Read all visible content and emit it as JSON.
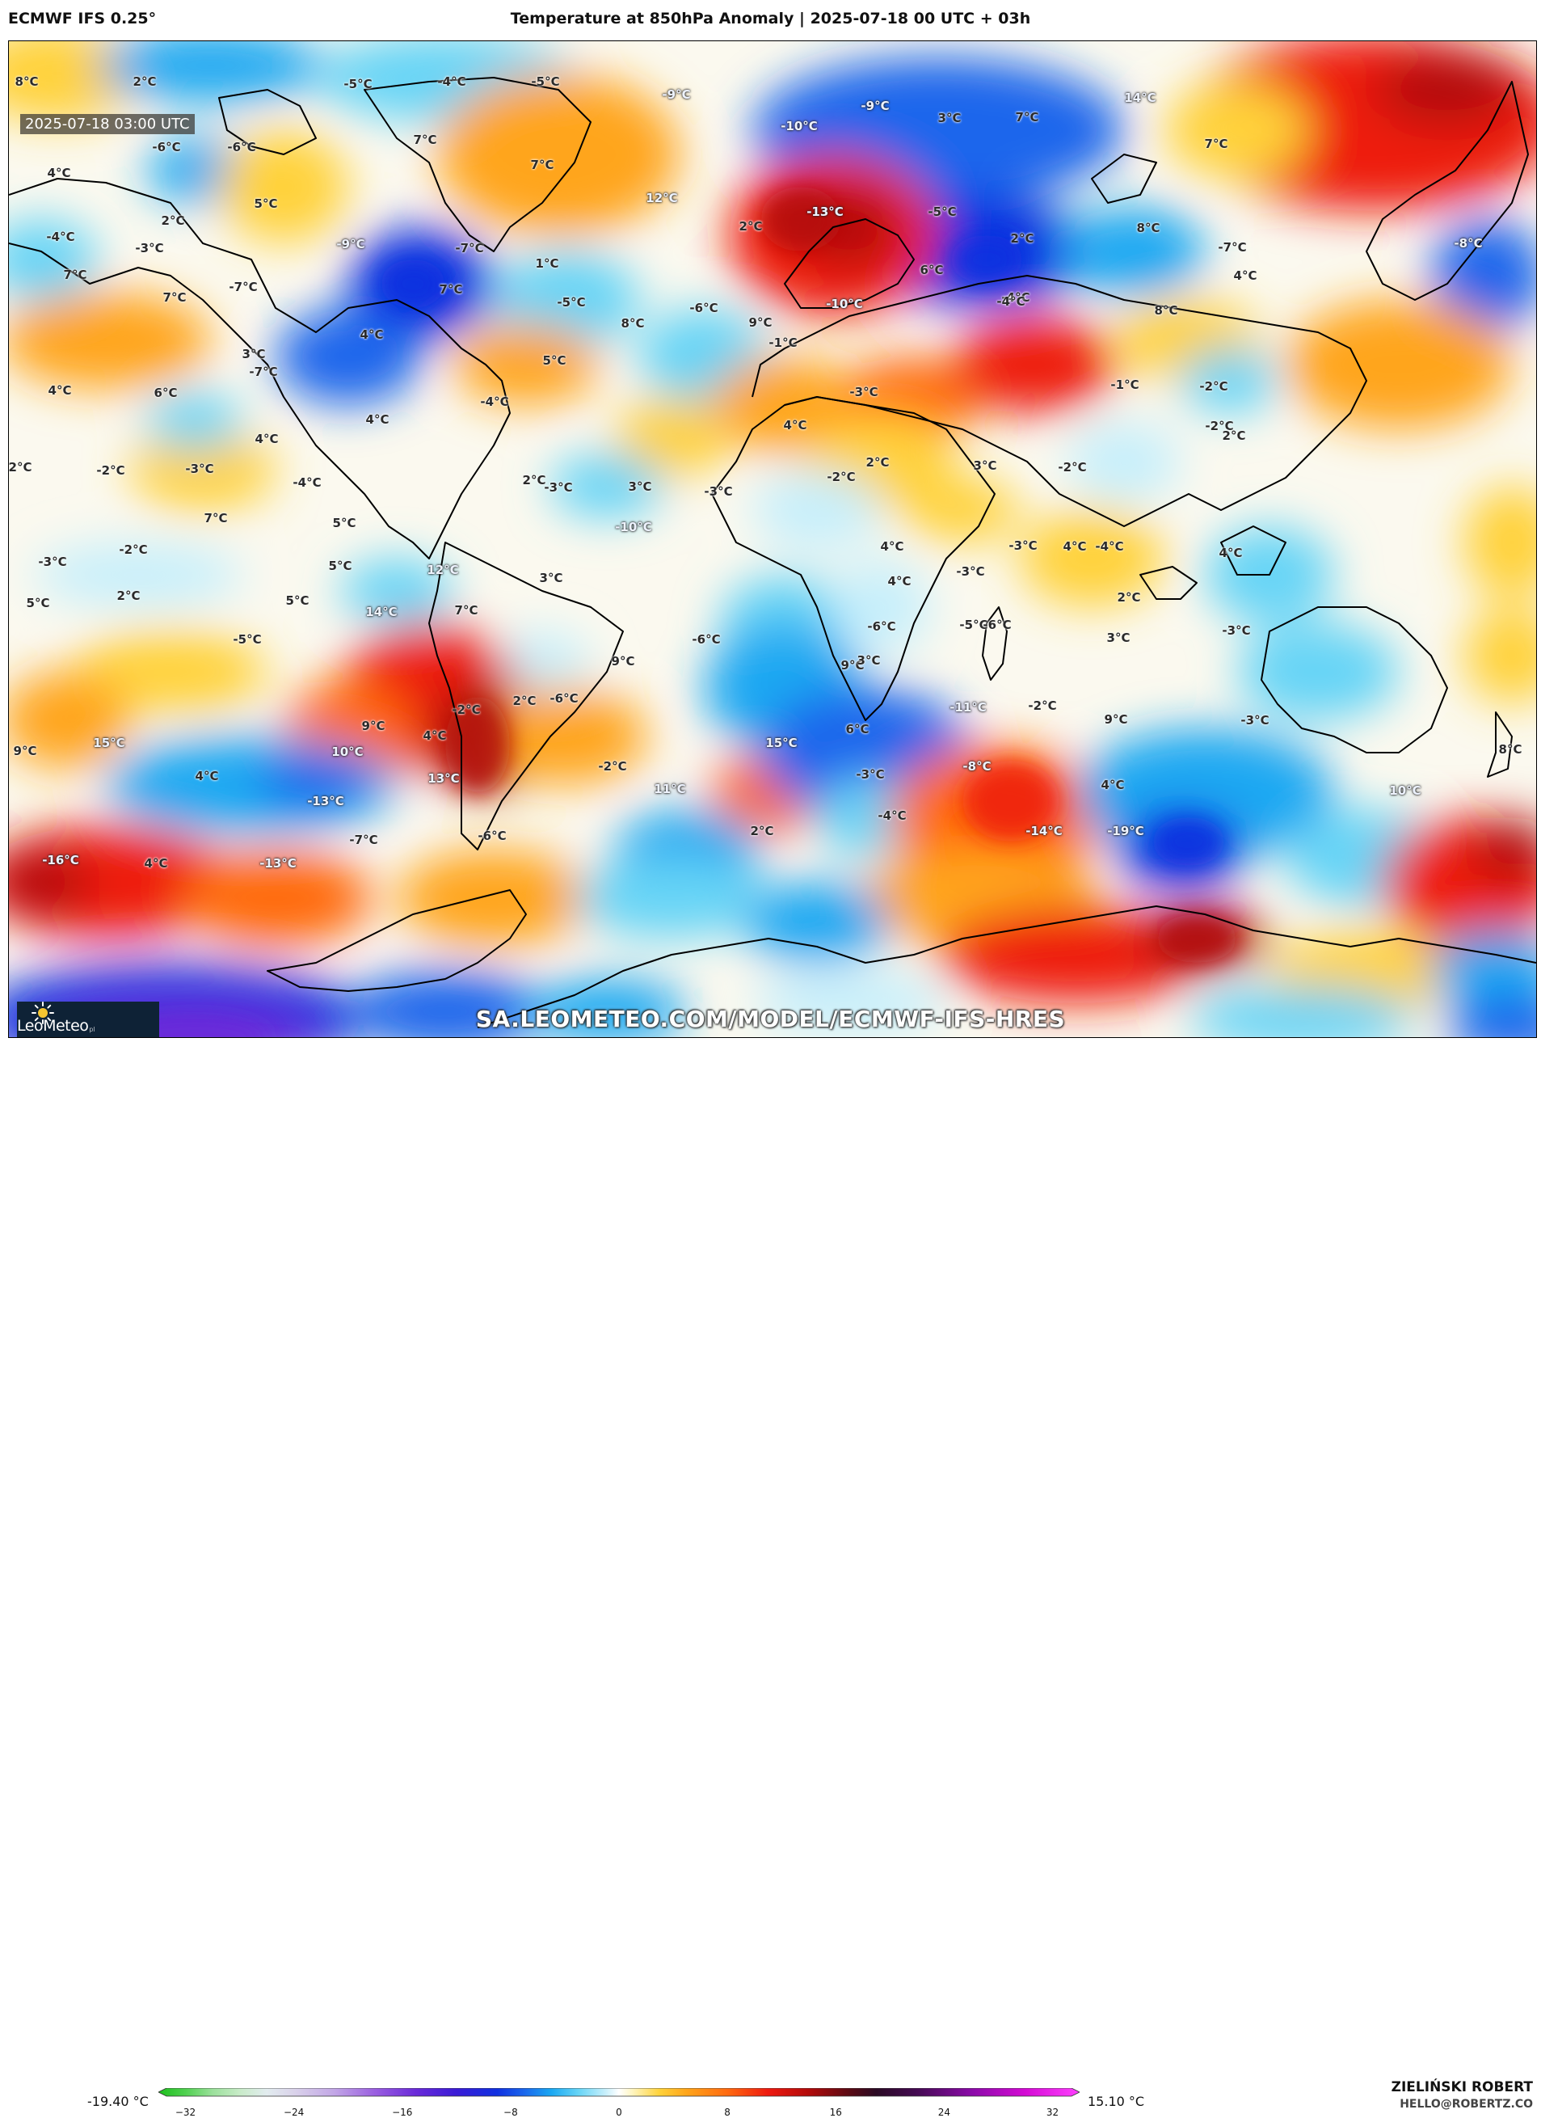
{
  "header": {
    "brand": "ECMWF IFS 0.25°",
    "title": "Temperature at 850hPa Anomaly | 2025-07-18 00 UTC + 03h"
  },
  "map": {
    "timestamp": "2025-07-18 03:00 UTC",
    "watermark": "SA.LEOMETEO.COM/MODEL/ECMWF-IFS-HRES",
    "logo": {
      "name": "LeoMeteo",
      "suffix": "pl"
    },
    "labels": [
      "8°C",
      "2°C",
      "-5°C",
      "-4°C",
      "-5°C",
      "-9°C",
      "-9°C",
      "3°C",
      "7°C",
      "14°C",
      "-10°C",
      "-6°C",
      "-6°C",
      "7°C",
      "7°C",
      "7°C",
      "4°C",
      "5°C",
      "12°C",
      "2°C",
      "-13°C",
      "-5°C",
      "8°C",
      "2°C",
      "-4°C",
      "-3°C",
      "-9°C",
      "-7°C",
      "1°C",
      "2°C",
      "-8°C",
      "7°C",
      "7°C",
      "-7°C",
      "-7°C",
      "6°C",
      "4°C",
      "-5°C",
      "-10°C",
      "-4°C",
      "-6°C",
      "8°C",
      "8°C",
      "9°C",
      "7°C",
      "-1°C",
      "-4°C",
      "3°C",
      "4°C",
      "5°C",
      "-7°C",
      "-1°C",
      "-2°C",
      "4°C",
      "6°C",
      "-4°C",
      "-3°C",
      "-2°C",
      "4°C",
      "4°C",
      "2°C",
      "2°C",
      "4°C",
      "2°C",
      "-2°C",
      "-3°C",
      "-4°C",
      "2°C",
      "-2°C",
      "3°C",
      "-3°C",
      "3°C",
      "-2°C",
      "4°C",
      "7°C",
      "5°C",
      "-10°C",
      "-3°C",
      "4°C",
      "-3°C",
      "-4°C",
      "4°C",
      "4°C",
      "-2°C",
      "-3°C",
      "5°C",
      "12°C",
      "-3°C",
      "5°C",
      "2°C",
      "5°C",
      "3°C",
      "2°C",
      "-5°C",
      "-5°C",
      "14°C",
      "7°C",
      "-6°C",
      "-6°C",
      "-6°C",
      "3°C",
      "-3°C",
      "9°C",
      "9°C",
      "6°C",
      "3°C",
      "4°C",
      "-2°C",
      "2°C",
      "-6°C",
      "-11°C",
      "-2°C",
      "9°C",
      "-3°C",
      "4°C",
      "10°C",
      "9°C",
      "15°C",
      "15°C",
      "9°C",
      "8°C",
      "4°C",
      "13°C",
      "-2°C",
      "-8°C",
      "-3°C",
      "11°C",
      "10°C",
      "-13°C",
      "-4°C",
      "-7°C",
      "-6°C",
      "2°C",
      "-14°C",
      "-19°C",
      "-16°C",
      "4°C",
      "-13°C"
    ]
  },
  "legend": {
    "min": "-19.40 °C",
    "max": "15.10 °C",
    "ticks": [
      "−32",
      "−24",
      "−16",
      "−8",
      "0",
      "8",
      "16",
      "24",
      "32"
    ],
    "range": [
      -34,
      34
    ],
    "stops": [
      {
        "v": -34,
        "c": "#1cbf1c"
      },
      {
        "v": -32,
        "c": "#4fd04f"
      },
      {
        "v": -30,
        "c": "#9be09b"
      },
      {
        "v": -28,
        "c": "#c8ebc8"
      },
      {
        "v": -26,
        "c": "#e2ecef"
      },
      {
        "v": -24,
        "c": "#dad3ea"
      },
      {
        "v": -21,
        "c": "#c2a6e6"
      },
      {
        "v": -18,
        "c": "#9a5ee0"
      },
      {
        "v": -15,
        "c": "#6a2ad9"
      },
      {
        "v": -12,
        "c": "#3a1bd6"
      },
      {
        "v": -9,
        "c": "#1030e0"
      },
      {
        "v": -7,
        "c": "#1a66ec"
      },
      {
        "v": -5,
        "c": "#1aa8f2"
      },
      {
        "v": -3,
        "c": "#66d4f6"
      },
      {
        "v": -1,
        "c": "#c7effb"
      },
      {
        "v": 0,
        "c": "#ffffff"
      },
      {
        "v": 1,
        "c": "#fff5c0"
      },
      {
        "v": 3,
        "c": "#ffd23a"
      },
      {
        "v": 5,
        "c": "#ffa51a"
      },
      {
        "v": 8,
        "c": "#ff6a10"
      },
      {
        "v": 11,
        "c": "#ee1a10"
      },
      {
        "v": 14,
        "c": "#b20a0a"
      },
      {
        "v": 17,
        "c": "#5a0a14"
      },
      {
        "v": 19,
        "c": "#2a0a24"
      },
      {
        "v": 22,
        "c": "#440a52"
      },
      {
        "v": 26,
        "c": "#8a0aa8"
      },
      {
        "v": 30,
        "c": "#d40ad4"
      },
      {
        "v": 34,
        "c": "#ff40ff"
      }
    ]
  },
  "author": {
    "name": "ZIELIŃSKI ROBERT",
    "email": "HELLO@ROBERTZ.CO"
  },
  "colors": {
    "warm": "#ff6a10",
    "hot": "#e0140c",
    "yellow": "#ffd23a",
    "cold": "#1aa8f2",
    "deep_cold": "#1030e0",
    "purple": "#6a2ad9",
    "coast": "#000000"
  }
}
